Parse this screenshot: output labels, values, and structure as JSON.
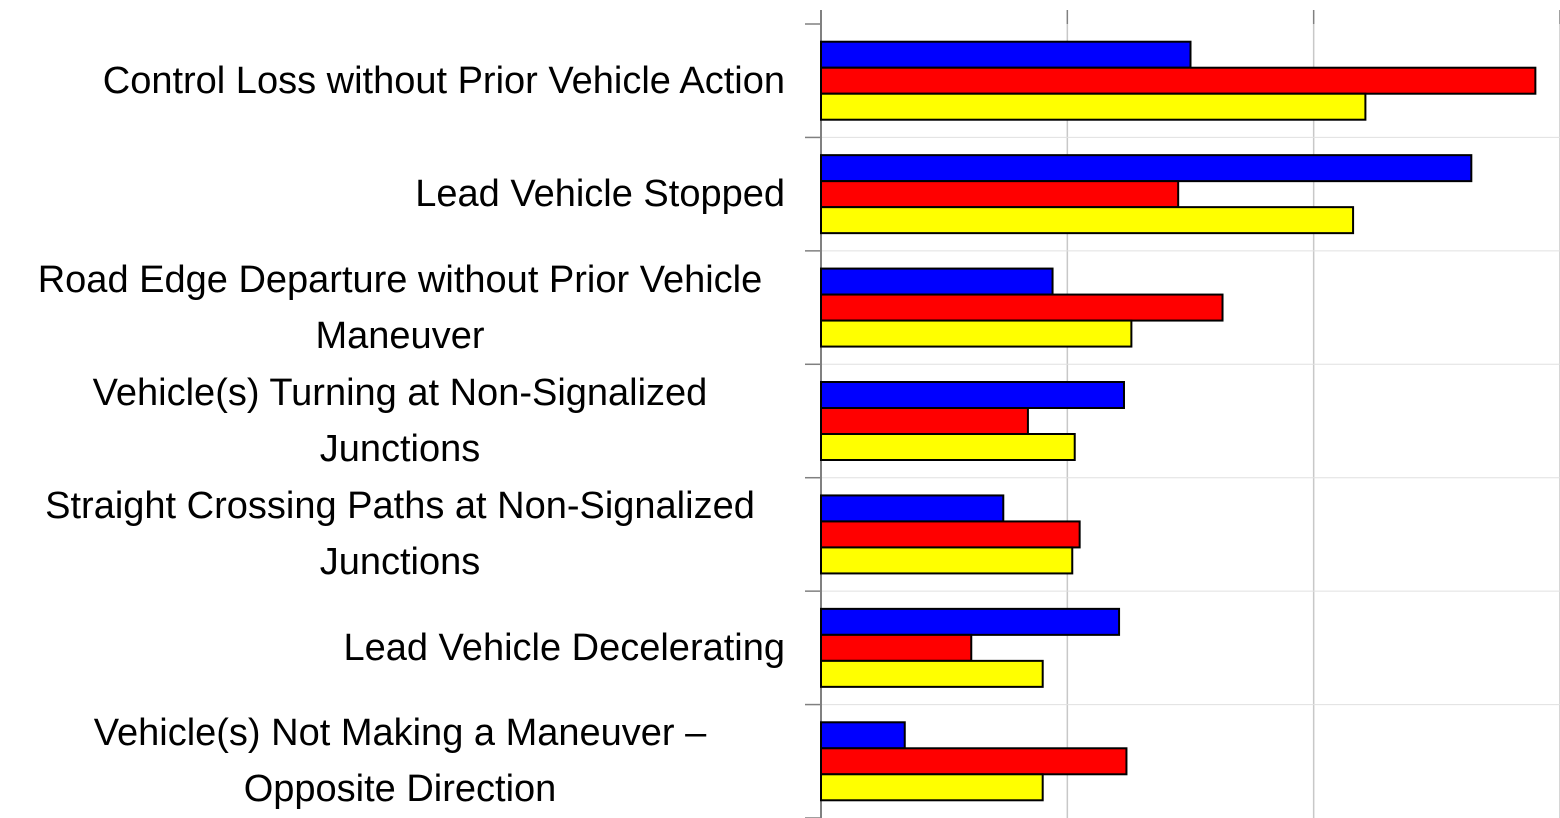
{
  "chart_data": {
    "type": "hbar",
    "categories": [
      "Control Loss without Prior Vehicle Action",
      "Lead Vehicle Stopped",
      "Road Edge Departure without Prior Vehicle Maneuver",
      "Vehicle(s) Turning at Non-Signalized Junctions",
      "Straight Crossing Paths at Non-Signalized Junctions",
      "Lead Vehicle Decelerating",
      "Vehicle(s) Not Making a Maneuver – Opposite Direction"
    ],
    "series": [
      {
        "color": "#0000ff",
        "values": [
          1.5,
          2.64,
          0.94,
          1.23,
          0.74,
          1.21,
          0.34
        ]
      },
      {
        "color": "#ff0000",
        "values": [
          2.9,
          1.45,
          1.63,
          0.84,
          1.05,
          0.61,
          1.24
        ]
      },
      {
        "color": "#ffff00",
        "values": [
          2.21,
          2.16,
          1.26,
          1.03,
          1.02,
          0.9,
          0.9
        ]
      }
    ],
    "xlim": [
      0,
      3
    ],
    "xticks": [
      0,
      1,
      2,
      3
    ],
    "grid": true
  }
}
